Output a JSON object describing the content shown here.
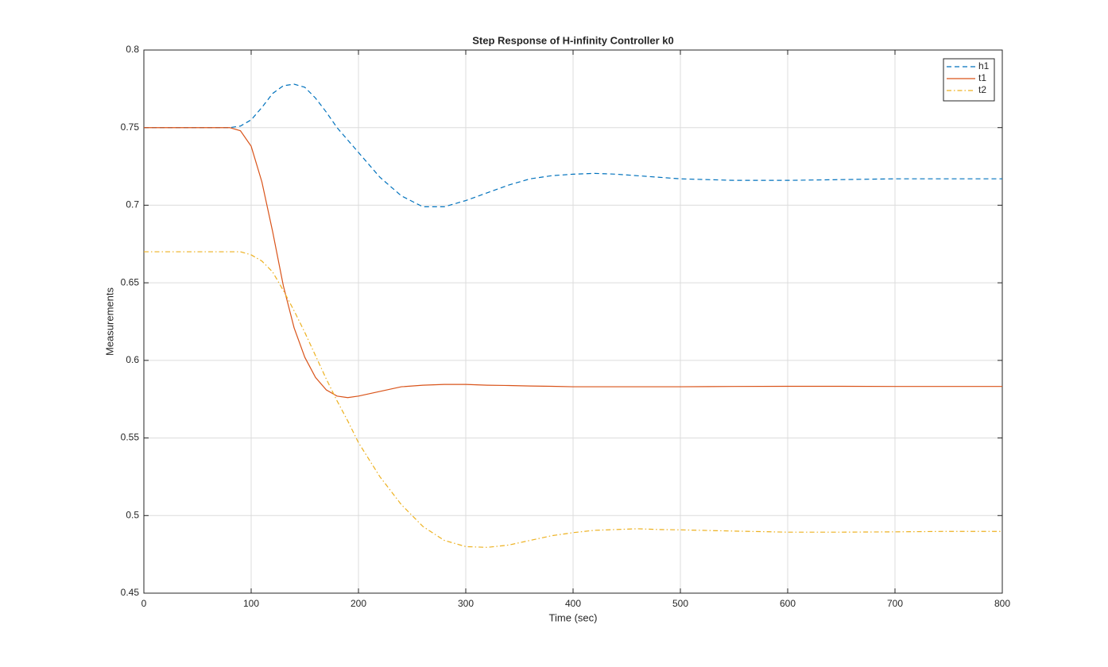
{
  "chart_data": {
    "type": "line",
    "title": "Step Response of H-infinity Controller k0",
    "xlabel": "Time (sec)",
    "ylabel": "Measurements",
    "x": [
      0,
      20,
      40,
      60,
      80,
      90,
      100,
      110,
      120,
      130,
      140,
      150,
      160,
      170,
      180,
      190,
      200,
      220,
      240,
      260,
      280,
      300,
      320,
      340,
      360,
      380,
      400,
      420,
      440,
      460,
      480,
      500,
      550,
      600,
      650,
      700,
      750,
      800
    ],
    "series": [
      {
        "name": "h1",
        "color": "#0072BD",
        "linestyle": "dashed",
        "values": [
          0.75,
          0.75,
          0.75,
          0.75,
          0.75,
          0.751,
          0.755,
          0.763,
          0.772,
          0.777,
          0.778,
          0.776,
          0.769,
          0.76,
          0.75,
          0.742,
          0.734,
          0.718,
          0.706,
          0.699,
          0.699,
          0.703,
          0.708,
          0.713,
          0.717,
          0.719,
          0.72,
          0.7205,
          0.72,
          0.719,
          0.718,
          0.717,
          0.716,
          0.716,
          0.7165,
          0.717,
          0.717,
          0.717
        ]
      },
      {
        "name": "t1",
        "color": "#D95319",
        "linestyle": "solid",
        "values": [
          0.75,
          0.75,
          0.75,
          0.75,
          0.75,
          0.748,
          0.738,
          0.715,
          0.683,
          0.648,
          0.621,
          0.602,
          0.589,
          0.581,
          0.577,
          0.576,
          0.577,
          0.58,
          0.583,
          0.584,
          0.5845,
          0.5845,
          0.584,
          0.5838,
          0.5835,
          0.5833,
          0.583,
          0.583,
          0.583,
          0.583,
          0.583,
          0.583,
          0.5832,
          0.5833,
          0.5833,
          0.5832,
          0.5832,
          0.5832
        ]
      },
      {
        "name": "t2",
        "color": "#EDB120",
        "linestyle": "dashdot",
        "values": [
          0.67,
          0.67,
          0.67,
          0.67,
          0.67,
          0.67,
          0.668,
          0.664,
          0.657,
          0.645,
          0.632,
          0.618,
          0.603,
          0.588,
          0.574,
          0.561,
          0.547,
          0.525,
          0.507,
          0.493,
          0.484,
          0.48,
          0.4795,
          0.481,
          0.484,
          0.487,
          0.489,
          0.4905,
          0.491,
          0.4915,
          0.491,
          0.4908,
          0.49,
          0.4893,
          0.4893,
          0.4895,
          0.4898,
          0.4898
        ]
      }
    ],
    "xlim": [
      0,
      800
    ],
    "xticks": [
      0,
      100,
      200,
      300,
      400,
      500,
      600,
      700,
      800
    ],
    "ylim": [
      0.45,
      0.8
    ],
    "yticks": [
      0.45,
      0.5,
      0.55,
      0.6,
      0.65,
      0.7,
      0.75,
      0.8
    ],
    "grid": true,
    "legend": "upper right"
  }
}
